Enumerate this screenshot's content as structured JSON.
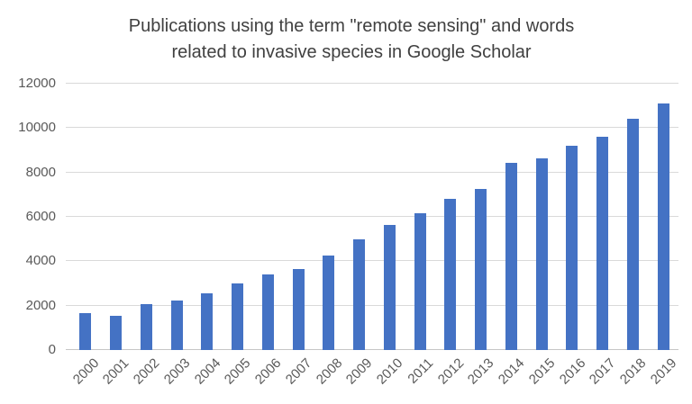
{
  "chart_data": {
    "type": "bar",
    "title": "Publications using the term \"remote sensing\" and words related to invasive species in Google Scholar",
    "title_lines": [
      "Publications using the term \"remote sensing\" and words",
      "related to invasive species in Google Scholar"
    ],
    "categories": [
      "2000",
      "2001",
      "2002",
      "2003",
      "2004",
      "2005",
      "2006",
      "2007",
      "2008",
      "2009",
      "2010",
      "2011",
      "2012",
      "2013",
      "2014",
      "2015",
      "2016",
      "2017",
      "2018",
      "2019"
    ],
    "values": [
      1660,
      1550,
      2050,
      2250,
      2550,
      3000,
      3400,
      3650,
      4250,
      5000,
      5650,
      6150,
      6800,
      7250,
      8450,
      8650,
      9200,
      9600,
      10400,
      11100
    ],
    "xlabel": "",
    "ylabel": "",
    "ylim": [
      0,
      12000
    ],
    "yticks": [
      0,
      2000,
      4000,
      6000,
      8000,
      10000,
      12000
    ],
    "grid": "horizontal",
    "legend": "none"
  },
  "colors": {
    "bar": "#4472C4",
    "gridline": "#D9D9D9",
    "axis_line": "#C6C6C6",
    "title_text": "#404040",
    "tick_text": "#595959",
    "background": "#FFFFFF"
  }
}
